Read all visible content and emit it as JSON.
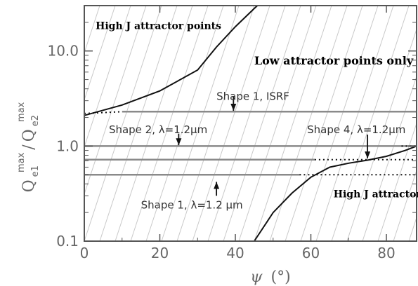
{
  "chart_data": {
    "type": "line",
    "title": "",
    "xlabel": {
      "symbol": "ψ",
      "unit": "(°)"
    },
    "ylabel": {
      "base1": "Q",
      "sub1": "e1",
      "sup1": "max",
      "slash": "/",
      "base2": "Q",
      "sub2": "e2",
      "sup2": "max"
    },
    "xlim": [
      0,
      88
    ],
    "ylim": [
      0.1,
      30
    ],
    "yscale": "log",
    "x_ticks": [
      "0",
      "20",
      "40",
      "60",
      "80"
    ],
    "x_tick_values": [
      0,
      20,
      40,
      60,
      80
    ],
    "y_ticks": [
      "0.1",
      "1.0",
      "10.0"
    ],
    "y_tick_values": [
      0.1,
      1.0,
      10.0
    ],
    "background_hatch": true,
    "series": [
      {
        "style": "black-solid",
        "x": [
          0,
          10,
          20,
          30,
          35,
          40,
          45,
          47
        ],
        "y": [
          2.1,
          2.7,
          3.8,
          6.3,
          11,
          18,
          28,
          33
        ]
      },
      {
        "style": "black-solid",
        "x": [
          45,
          50,
          55,
          60,
          65,
          70,
          75,
          80,
          85,
          88
        ],
        "y": [
          0.1,
          0.2,
          0.32,
          0.47,
          0.6,
          0.66,
          0.71,
          0.78,
          0.9,
          1.0
        ]
      },
      {
        "style": "gray-hline",
        "x": [
          10,
          88
        ],
        "y": [
          2.3,
          2.3
        ]
      },
      {
        "style": "gray-hline",
        "x": [
          0,
          88
        ],
        "y": [
          1.0,
          1.0
        ]
      },
      {
        "style": "gray-hline",
        "x": [
          0,
          61
        ],
        "y": [
          0.72,
          0.72
        ]
      },
      {
        "style": "gray-hline",
        "x": [
          0,
          57
        ],
        "y": [
          0.5,
          0.5
        ]
      },
      {
        "style": "dotted",
        "x": [
          0,
          10
        ],
        "y": [
          2.2,
          2.3
        ]
      },
      {
        "style": "dotted",
        "x": [
          61,
          88
        ],
        "y": [
          0.72,
          0.72
        ]
      },
      {
        "style": "dotted",
        "x": [
          57,
          88
        ],
        "y": [
          0.5,
          0.5
        ]
      },
      {
        "style": "dotted",
        "x": [
          84,
          88
        ],
        "y": [
          1.0,
          1.0
        ]
      }
    ],
    "annotations": [
      {
        "text": "High J attractor points",
        "style": "bold",
        "x": 3,
        "y": 17
      },
      {
        "text": "Low attractor points only",
        "style": "bigbold",
        "x": 45,
        "y": 7.2
      },
      {
        "text": "High J attractor points",
        "style": "bold",
        "x": 66,
        "y": 0.29
      },
      {
        "text": "Shape 1, ISRF",
        "style": "ann",
        "x": 35,
        "y": 3.05
      },
      {
        "text": "Shape 2, λ=1.2μm",
        "style": "ann",
        "x": 6.5,
        "y": 1.37
      },
      {
        "text": "Shape 4, λ=1.2μm",
        "style": "ann",
        "x": 59,
        "y": 1.37
      },
      {
        "text": "Shape 1, λ=1.2 μm",
        "style": "ann",
        "x": 15,
        "y": 0.22
      }
    ],
    "arrows": [
      {
        "x": 39.5,
        "y_from": 3.3,
        "y_to": 2.35
      },
      {
        "x": 25,
        "y_from": 1.35,
        "y_to": 1.02
      },
      {
        "x": 75,
        "y_from": 1.32,
        "y_to": 0.74
      },
      {
        "x": 35,
        "y_from": 0.3,
        "y_to": 0.42
      }
    ]
  }
}
